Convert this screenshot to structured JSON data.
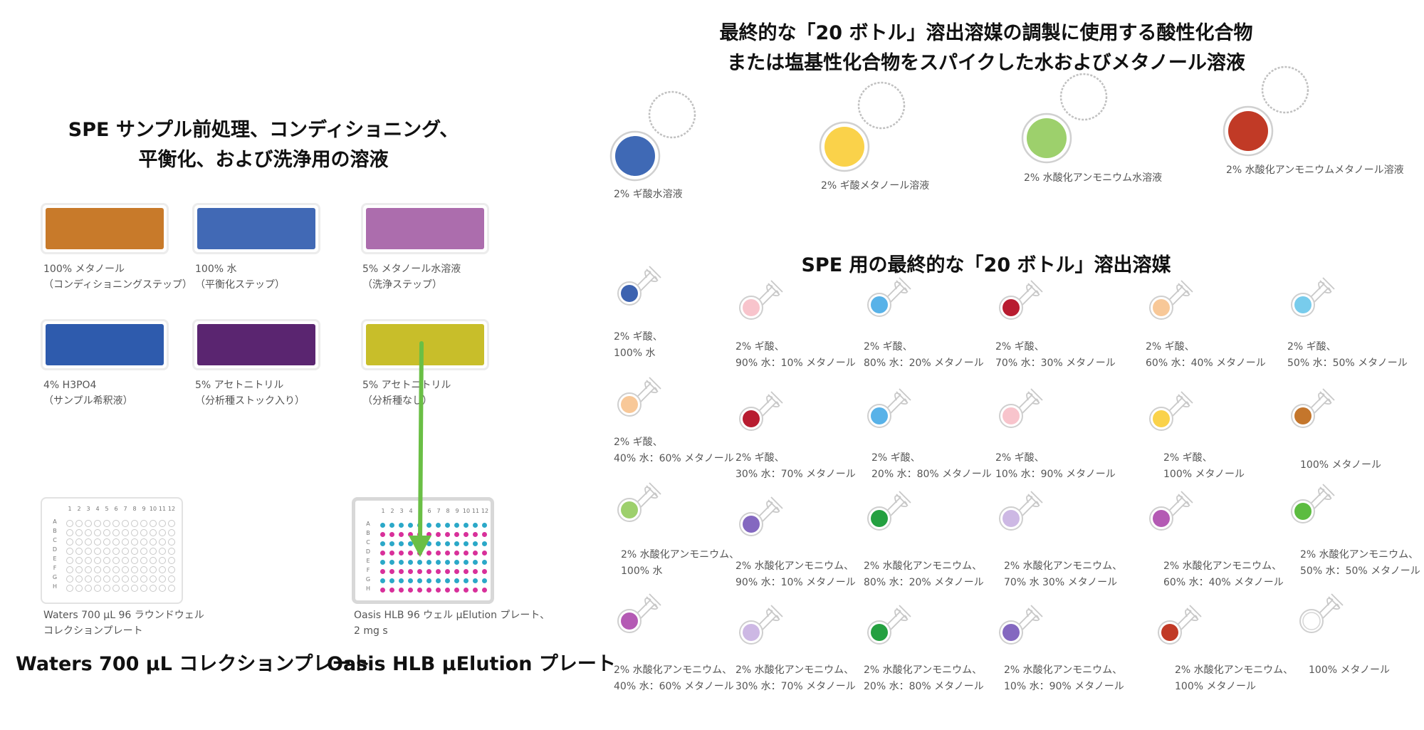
{
  "left": {
    "heading": [
      "SPE サンプル前処理、コンディショニング、",
      "平衡化、および洗浄用の溶液"
    ],
    "solutions": [
      {
        "color": "#c87a2a",
        "lines": [
          "100% メタノール",
          "（コンディショニングステップ）"
        ]
      },
      {
        "color": "#4169b5",
        "lines": [
          "100% 水",
          "（平衡化ステップ）"
        ]
      },
      {
        "color": "#ac6dad",
        "lines": [
          "5% メタノール水溶液",
          "（洗浄ステップ）"
        ]
      },
      {
        "color": "#2e5bad",
        "lines": [
          "4% H3PO4",
          "（サンプル希釈液）"
        ]
      },
      {
        "color": "#5a2570",
        "lines": [
          "5% アセトニトリル",
          "（分析種ストック入り）"
        ]
      },
      {
        "color": "#c8be2a",
        "lines": [
          "5% アセトニトリル",
          "（分析種なし）"
        ]
      }
    ],
    "plates": [
      {
        "caption": [
          "Waters 700 µL 96 ラウンドウェル",
          "コレクションプレート"
        ],
        "label": "Waters 700 µL コレクションプレート"
      },
      {
        "caption": [
          "Oasis HLB 96 ウェル µElution プレート、",
          "2 mg s"
        ],
        "label": "Oasis HLB µElution プレート"
      }
    ],
    "plate_columns": [
      "1",
      "2",
      "3",
      "4",
      "5",
      "6",
      "7",
      "8",
      "9",
      "10",
      "11",
      "12"
    ],
    "plate_rows": [
      "A",
      "B",
      "C",
      "D",
      "E",
      "F",
      "G",
      "H"
    ],
    "plate_colors": {
      "cyan": "#2ba8c8",
      "magenta": "#d8309a",
      "empty": "#c8c8c8",
      "arrow": "#6abf45"
    }
  },
  "right": {
    "heading1": [
      "最終的な「20 ボトル」溶出溶媒の調製に使用する酸性化合物",
      "または塩基性化合物をスパイクした水およびメタノール溶液"
    ],
    "spikes": [
      {
        "color": "#3f69b5",
        "caption": "2% ギ酸水溶液"
      },
      {
        "color": "#fad24a",
        "caption": "2% ギ酸メタノール溶液"
      },
      {
        "color": "#9dd06c",
        "caption": "2% 水酸化アンモニウム水溶液"
      },
      {
        "color": "#c13a26",
        "caption": "2% 水酸化アンモニウムメタノール溶液"
      }
    ],
    "heading2": "SPE 用の最終的な「20 ボトル」溶出溶媒",
    "bottles": [
      {
        "color": "#3d63b0",
        "lines": [
          "2% ギ酸、",
          "100% 水"
        ]
      },
      {
        "color": "#f8c4cc",
        "lines": [
          "2% ギ酸、",
          "90% 水：10% メタノール"
        ]
      },
      {
        "color": "#58b2e8",
        "lines": [
          "2% ギ酸、",
          "80% 水：20% メタノール"
        ]
      },
      {
        "color": "#b81c30",
        "lines": [
          "2% ギ酸、",
          "70% 水：30% メタノール"
        ]
      },
      {
        "color": "#f8c898",
        "lines": [
          "2% ギ酸、",
          "60% 水：40% メタノール"
        ]
      },
      {
        "color": "#78ccec",
        "lines": [
          "2% ギ酸、",
          "50% 水：50% メタノール"
        ]
      },
      {
        "color": "#f8c898",
        "lines": [
          "2% ギ酸、",
          "40% 水：60% メタノール"
        ]
      },
      {
        "color": "#b81c30",
        "lines": [
          "2% ギ酸、",
          "30% 水：70% メタノール"
        ]
      },
      {
        "color": "#58b2e8",
        "lines": [
          "2% ギ酸、",
          "20% 水：80% メタノール"
        ]
      },
      {
        "color": "#f8c4cc",
        "lines": [
          "2% ギ酸、",
          "10% 水：90% メタノール"
        ]
      },
      {
        "color": "#fad24a",
        "lines": [
          "2% ギ酸、",
          "100% メタノール"
        ]
      },
      {
        "color": "#c4762c",
        "lines": [
          "100% メタノール"
        ]
      },
      {
        "color": "#9dd06c",
        "lines": [
          "2% 水酸化アンモニウム、",
          "100% 水"
        ]
      },
      {
        "color": "#8468c0",
        "lines": [
          "2% 水酸化アンモニウム、",
          "90% 水：10% メタノール"
        ]
      },
      {
        "color": "#24a040",
        "lines": [
          "2% 水酸化アンモニウム、",
          "80% 水：20% メタノール"
        ]
      },
      {
        "color": "#cdb8e4",
        "lines": [
          "2% 水酸化アンモニウム、",
          "70% 水 30% メタノール"
        ]
      },
      {
        "color": "#b45ab4",
        "lines": [
          "2% 水酸化アンモニウム、",
          "60% 水：40% メタノール"
        ]
      },
      {
        "color": "#5cbc40",
        "lines": [
          "2% 水酸化アンモニウム、",
          "50% 水：50% メタノール"
        ]
      },
      {
        "color": "#b45ab4",
        "lines": [
          "2% 水酸化アンモニウム、",
          "40% 水：60% メタノール"
        ]
      },
      {
        "color": "#cdb8e4",
        "lines": [
          "2% 水酸化アンモニウム、",
          "30% 水：70% メタノール"
        ]
      },
      {
        "color": "#24a040",
        "lines": [
          "2% 水酸化アンモニウム、",
          "20% 水：80% メタノール"
        ]
      },
      {
        "color": "#8468c0",
        "lines": [
          "2% 水酸化アンモニウム、",
          "10% 水：90% メタノール"
        ]
      },
      {
        "color": "#c13a26",
        "lines": [
          "2% 水酸化アンモニウム、",
          "100% メタノール"
        ]
      },
      {
        "color": "#ffffff",
        "lines": [
          "100% メタノール"
        ]
      }
    ]
  }
}
